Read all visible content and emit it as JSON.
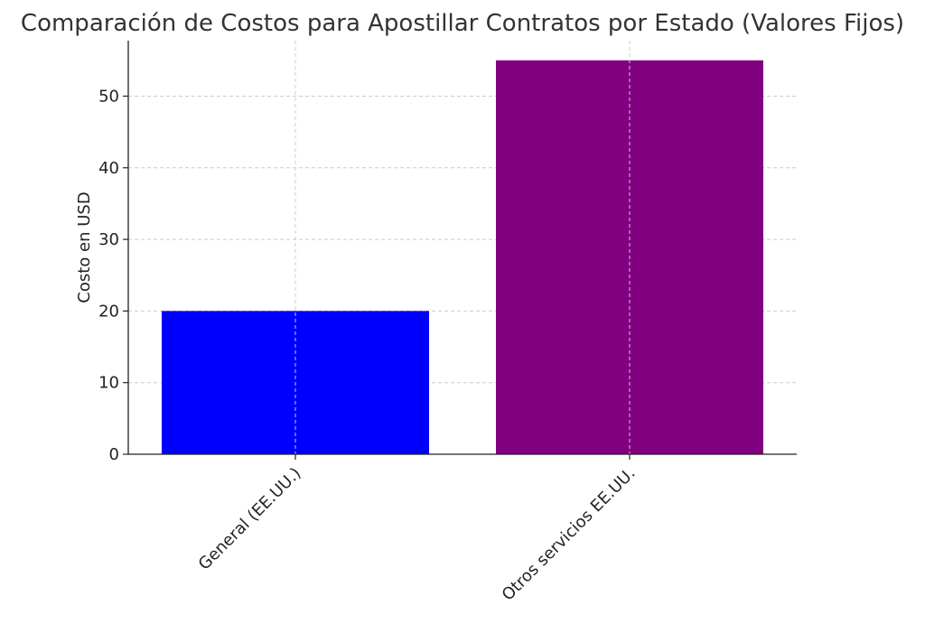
{
  "chart_data": {
    "type": "bar",
    "title": "Comparación de Costos para Apostillar Contratos por Estado (Valores Fijos)",
    "xlabel": "",
    "ylabel": "Costo en USD",
    "categories": [
      "General (EE.UU.)",
      "Otros servicios EE.UU."
    ],
    "values": [
      20,
      55
    ],
    "colors": [
      "#0000ff",
      "#800080"
    ],
    "ylim": [
      0,
      57.75
    ],
    "yticks": [
      0,
      10,
      20,
      30,
      40,
      50
    ],
    "grid": true,
    "legend": "none"
  }
}
